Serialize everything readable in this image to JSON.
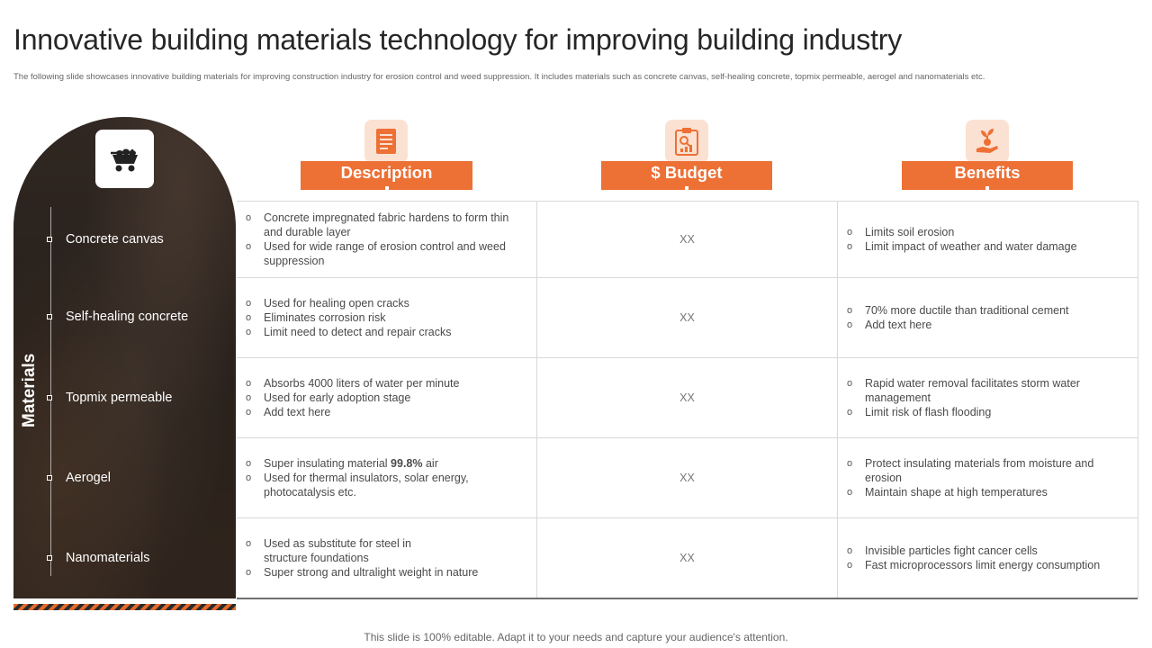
{
  "title": "Innovative building materials technology for improving building industry",
  "subtitle": "The following slide showcases innovative building materials  for improving construction industry for erosion control and weed suppression. It includes materials such as concrete canvas, self-healing concrete, topmix permeable, aerogel and nanomaterials etc.",
  "panel": {
    "vertical_label": "Materials",
    "icon": "wheelbarrow-icon",
    "materials": [
      "Concrete canvas",
      "Self-healing concrete",
      "Topmix permeable",
      "Aerogel",
      "Nanomaterials"
    ]
  },
  "columns": [
    {
      "label": "Description",
      "icon": "document-icon"
    },
    {
      "label": "$ Budget",
      "icon": "clipboard-chart-icon"
    },
    {
      "label": "Benefits",
      "icon": "money-plant-hand-icon"
    }
  ],
  "rows": [
    {
      "description": [
        "Concrete impregnated fabric hardens to form thin and durable layer",
        "Used for wide range of erosion control and weed suppression"
      ],
      "budget": "XX",
      "benefits": [
        "Limits soil erosion",
        "Limit impact of weather and water damage"
      ]
    },
    {
      "description": [
        "Used for healing open cracks",
        "Eliminates corrosion risk",
        "Limit need to detect and repair cracks"
      ],
      "budget": "XX",
      "benefits": [
        "70% more ductile than traditional cement",
        "Add text here"
      ]
    },
    {
      "description": [
        "Absorbs 4000 liters of water per minute",
        "Used for early adoption stage",
        "Add text here"
      ],
      "budget": "XX",
      "benefits": [
        "Rapid water removal facilitates storm water management",
        "Limit risk of flash flooding"
      ]
    },
    {
      "description_prefix": "Super insulating material ",
      "description_bold": "99.8%",
      "description_suffix": " air",
      "description": [
        "Used for thermal insulators, solar energy, photocatalysis etc."
      ],
      "budget": "XX",
      "benefits": [
        "Protect insulating materials from moisture and erosion",
        "Maintain shape at high temperatures"
      ]
    },
    {
      "description": [
        "Used as substitute for steel in structure foundations",
        "Super strong and ultralight weight in nature"
      ],
      "budget": "XX",
      "benefits": [
        "Invisible  particles fight cancer cells",
        "Fast microprocessors limit energy consumption"
      ]
    }
  ],
  "footer": "This slide is 100% editable. Adapt it to your needs and capture your audience's attention.",
  "colors": {
    "accent": "#ed7035",
    "accent_light": "#fbe1d2",
    "panel": "#2f2622"
  }
}
